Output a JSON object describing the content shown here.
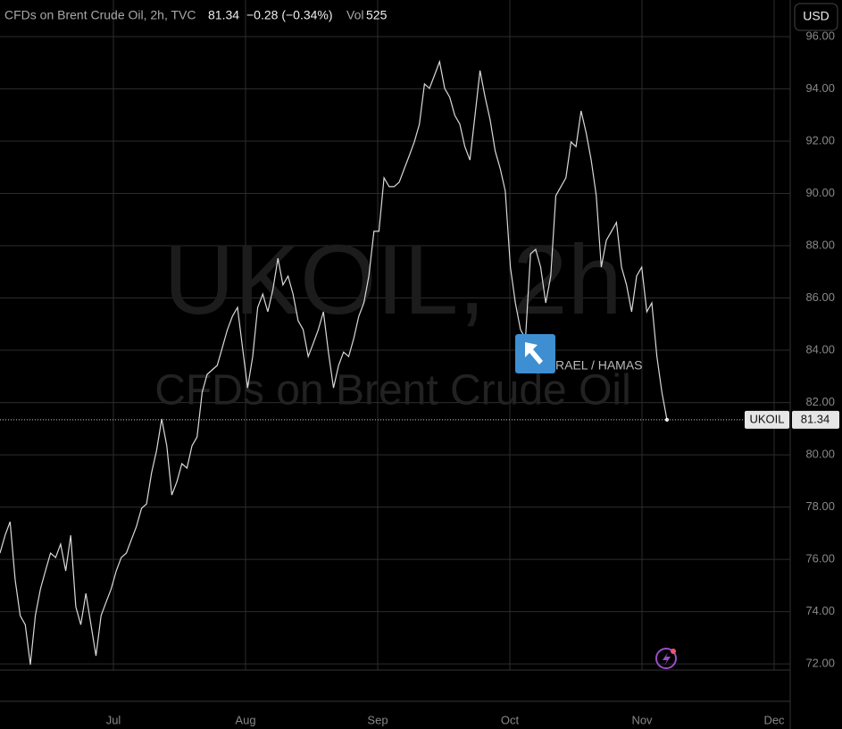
{
  "chart_data": {
    "type": "line",
    "title": "CFDs on Brent Crude Oil, 2h, TVC",
    "last_price": 81.34,
    "change": "−0.28 (−0.34%)",
    "volume_label": "Vol",
    "volume": 525,
    "currency": "USD",
    "watermark_title": "UKOIL, 2h",
    "watermark_subtitle": "CFDs on Brent Crude Oil",
    "symbol": "UKOIL",
    "annotation": "RAEL / HAMAS",
    "color": "#d9d9d9",
    "x_labels": [
      "Jul",
      "Aug",
      "Sep",
      "Oct",
      "Nov",
      "Dec"
    ],
    "values": [
      76.24,
      76.92,
      77.44,
      75.21,
      73.85,
      73.5,
      71.97,
      73.85,
      74.87,
      75.56,
      76.24,
      76.07,
      76.58,
      75.56,
      76.92,
      74.19,
      73.5,
      74.7,
      73.5,
      72.31,
      73.85,
      74.36,
      74.87,
      75.56,
      76.07,
      76.24,
      76.75,
      77.26,
      77.95,
      78.12,
      79.32,
      80.17,
      81.37,
      80.34,
      78.46,
      78.97,
      79.66,
      79.49,
      80.34,
      80.68,
      82.39,
      83.08,
      83.25,
      83.42,
      84.1,
      84.79,
      85.3,
      85.64,
      84.1,
      82.56,
      83.76,
      85.64,
      86.15,
      85.47,
      86.32,
      87.52,
      86.5,
      86.84,
      86.15,
      85.13,
      84.79,
      83.76,
      84.27,
      84.79,
      85.47,
      83.93,
      82.56,
      83.42,
      83.93,
      83.76,
      84.44,
      85.3,
      85.81,
      86.84,
      88.55,
      88.55,
      90.6,
      90.26,
      90.26,
      90.43,
      90.94,
      91.45,
      91.97,
      92.65,
      94.19,
      94.02,
      94.53,
      95.04,
      94.02,
      93.68,
      92.99,
      92.65,
      91.79,
      91.28,
      92.99,
      94.7,
      93.68,
      92.82,
      91.62,
      90.94,
      90.09,
      87.18,
      85.81,
      84.79,
      84.44,
      87.69,
      87.86,
      87.18,
      85.81,
      86.84,
      89.91,
      90.26,
      90.6,
      91.97,
      91.79,
      93.16,
      92.31,
      91.28,
      89.91,
      87.18,
      88.21,
      88.55,
      88.89,
      87.18,
      86.5,
      85.47,
      86.84,
      87.18,
      85.47,
      85.81,
      83.76,
      82.39,
      81.34
    ],
    "ylim": [
      71.8,
      97.4
    ],
    "yticks": [
      {
        "value": 72,
        "label": "72.00"
      },
      {
        "value": 74,
        "label": "74.00"
      },
      {
        "value": 76,
        "label": "76.00"
      },
      {
        "value": 78,
        "label": "78.00"
      },
      {
        "value": 80,
        "label": "80.00"
      },
      {
        "value": 82,
        "label": "82.00"
      },
      {
        "value": 84,
        "label": "84.00"
      },
      {
        "value": 86,
        "label": "86.00"
      },
      {
        "value": 88,
        "label": "88.00"
      },
      {
        "value": 90,
        "label": "90.00"
      },
      {
        "value": 92,
        "label": "92.00"
      },
      {
        "value": 94,
        "label": "94.00"
      },
      {
        "value": 96,
        "label": "96.00"
      }
    ],
    "grid": true
  }
}
